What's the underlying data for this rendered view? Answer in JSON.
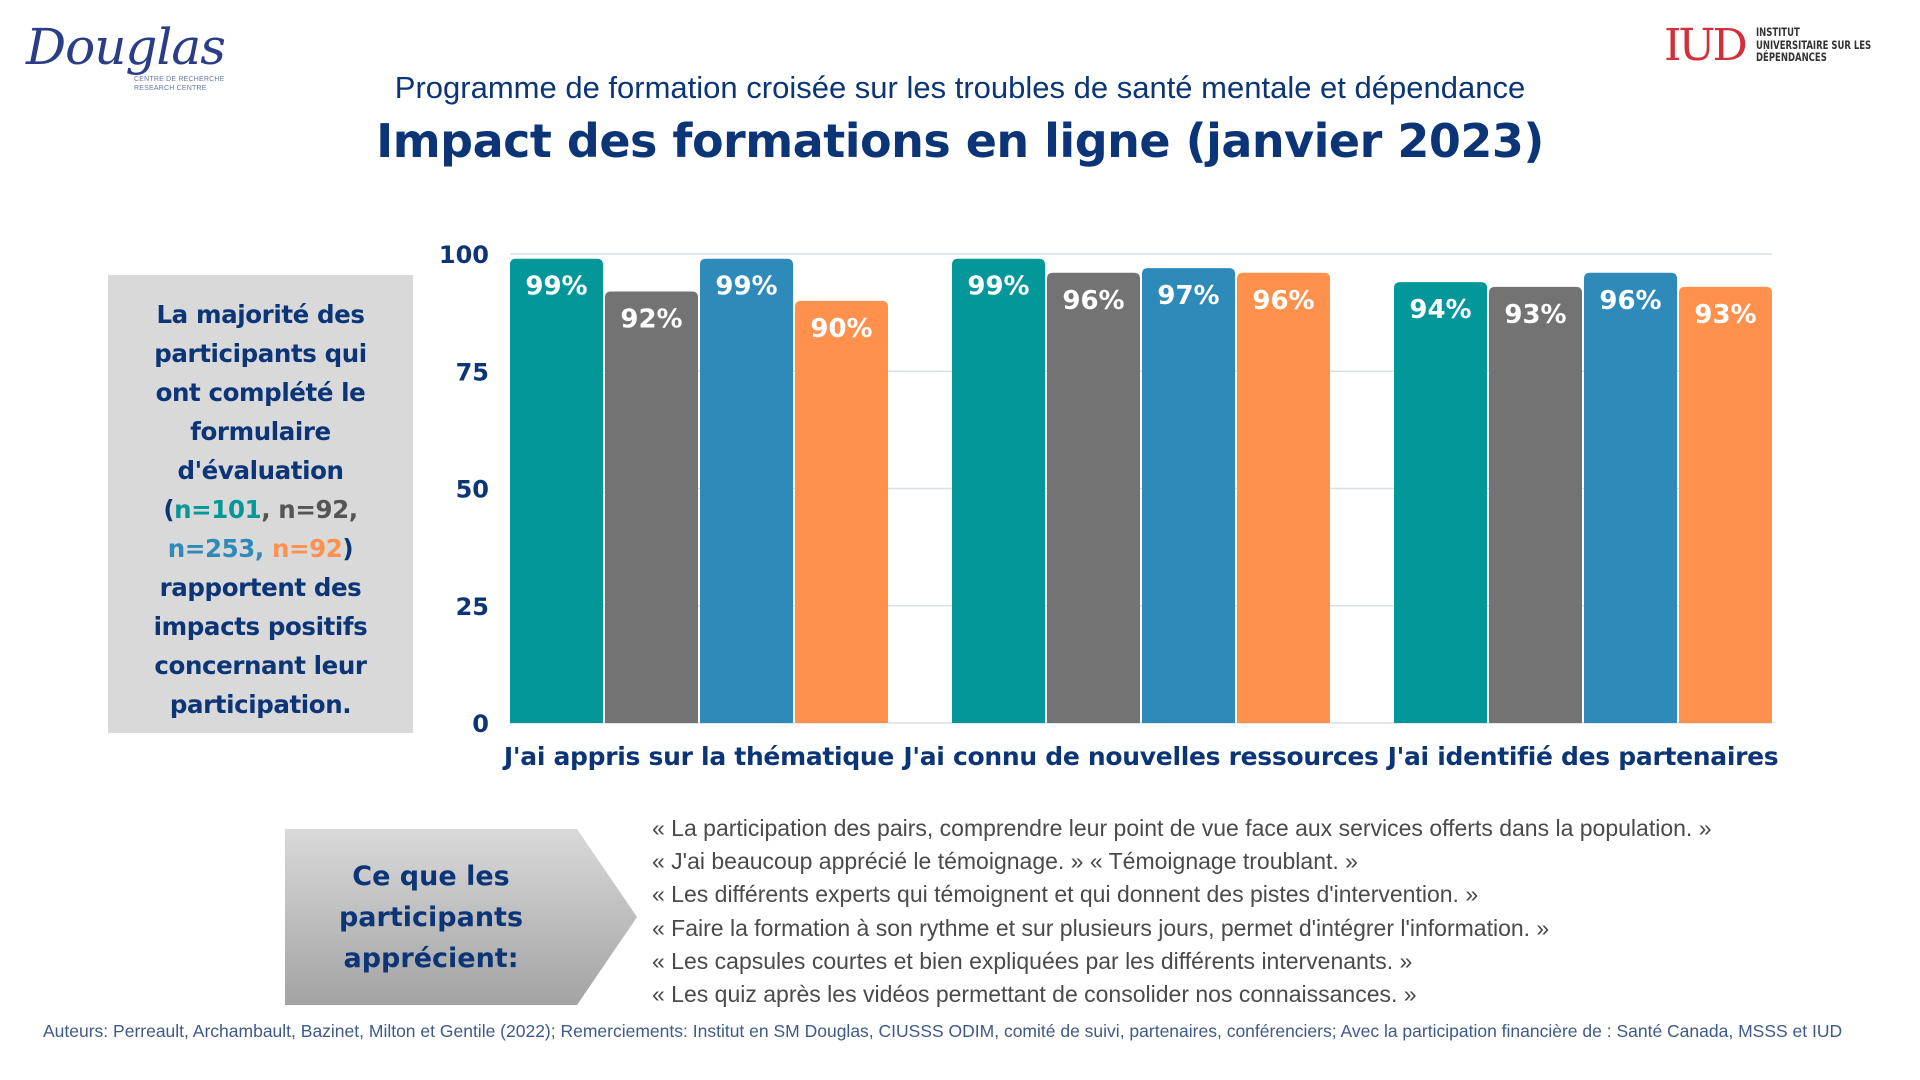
{
  "logos": {
    "left": {
      "name": "Douglas",
      "sub_line_1": "CENTRE DE RECHERCHE",
      "sub_line_2": "RESEARCH CENTRE"
    },
    "right": {
      "mark": "IUD",
      "line_1": "INSTITUT",
      "line_2": "UNIVERSITAIRE SUR LES",
      "line_3": "DÉPENDANCES"
    }
  },
  "header": {
    "subtitle": "Programme de formation croisée sur les troubles de santé mentale et dépendance",
    "title": "Impact des formations en ligne (janvier 2023)"
  },
  "info_box": {
    "lines": [
      "La majorité des",
      "participants qui",
      "ont complété le",
      "formulaire",
      "d'évaluation"
    ],
    "n_open": "(",
    "n1": "n=101",
    "sep1": ", ",
    "n2": "n=92,",
    "n3": "n=253, ",
    "n4": "n=92",
    "n_close": ")",
    "lines_after": [
      "rapportent des",
      "impacts positifs",
      "concernant leur",
      "participation."
    ]
  },
  "colors": {
    "series": [
      "#04979a",
      "#737373",
      "#2e8ab8",
      "#ff914d"
    ],
    "text_primary": "#0b3576",
    "gridline": "#d8dfe8"
  },
  "chart_data": {
    "type": "bar",
    "title": "Impact des formations en ligne (janvier 2023)",
    "xlabel": "",
    "ylabel": "",
    "ylim": [
      0,
      100
    ],
    "yticks": [
      0,
      25,
      50,
      75,
      100
    ],
    "grid": true,
    "legend": "none",
    "categories": [
      "J'ai appris sur la thématique",
      "J'ai connu de nouvelles ressources",
      "J'ai identifié des partenaires"
    ],
    "series": [
      {
        "name": "n=101",
        "color": "#04979a",
        "values": [
          99,
          99,
          94
        ]
      },
      {
        "name": "n=92",
        "color": "#737373",
        "values": [
          92,
          96,
          93
        ]
      },
      {
        "name": "n=253",
        "color": "#2e8ab8",
        "values": [
          99,
          97,
          96
        ]
      },
      {
        "name": "n=92",
        "color": "#ff914d",
        "values": [
          90,
          96,
          93
        ]
      }
    ],
    "value_suffix": "%"
  },
  "callout": {
    "lines": [
      "Ce que les",
      "participants",
      "apprécient:"
    ]
  },
  "quotes": [
    "« La participation des pairs, comprendre leur point de vue face aux services offerts dans la population. »",
    "« J'ai beaucoup apprécié le témoignage. » « Témoignage troublant. »",
    "« Les différents experts qui témoignent et qui donnent des pistes d'intervention. »",
    "« Faire la formation à son rythme et sur plusieurs jours, permet d'intégrer l'information. »",
    "« Les capsules courtes et bien expliquées par les différents intervenants. »",
    "« Les quiz après les vidéos permettant de consolider nos connaissances. »"
  ],
  "footer": {
    "text": "Auteurs: Perreault, Archambault, Bazinet, Milton et Gentile (2022); Remerciements: Institut en SM Douglas, CIUSSS ODIM,  comité de suivi, partenaires, conférenciers; Avec la participation financière de : Santé Canada, MSSS et IUD"
  }
}
